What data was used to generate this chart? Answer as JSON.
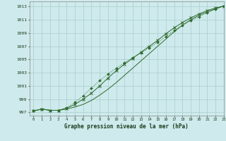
{
  "title": "Graphe pression niveau de la mer (hPa)",
  "bg_color": "#ceeaec",
  "grid_color": "#aacccc",
  "line_color": "#2d6a2d",
  "xlim": [
    -0.5,
    23
  ],
  "ylim": [
    996.5,
    1013.8
  ],
  "xticks": [
    0,
    1,
    2,
    3,
    4,
    5,
    6,
    7,
    8,
    9,
    10,
    11,
    12,
    13,
    14,
    15,
    16,
    17,
    18,
    19,
    20,
    21,
    22,
    23
  ],
  "yticks": [
    997,
    999,
    1001,
    1003,
    1005,
    1007,
    1009,
    1011,
    1013
  ],
  "series1": [
    997.2,
    997.5,
    997.3,
    997.3,
    997.5,
    997.8,
    998.2,
    998.8,
    999.6,
    1000.5,
    1001.5,
    1002.6,
    1003.7,
    1004.8,
    1005.9,
    1007.0,
    1008.1,
    1009.2,
    1010.2,
    1011.0,
    1011.7,
    1012.2,
    1012.7,
    1013.1
  ],
  "series2": [
    997.2,
    997.5,
    997.3,
    997.3,
    997.6,
    998.2,
    999.0,
    999.9,
    1001.0,
    1002.2,
    1003.3,
    1004.3,
    1005.2,
    1006.1,
    1007.0,
    1007.9,
    1008.9,
    1009.8,
    1010.6,
    1011.3,
    1011.9,
    1012.4,
    1012.8,
    1013.1
  ],
  "series3": [
    997.2,
    997.5,
    997.3,
    997.3,
    997.7,
    998.5,
    999.5,
    1000.7,
    1001.8,
    1002.8,
    1003.7,
    1004.5,
    1005.3,
    1006.0,
    1006.8,
    1007.6,
    1008.5,
    1009.4,
    1010.2,
    1010.9,
    1011.5,
    1012.1,
    1012.6,
    1013.1
  ]
}
